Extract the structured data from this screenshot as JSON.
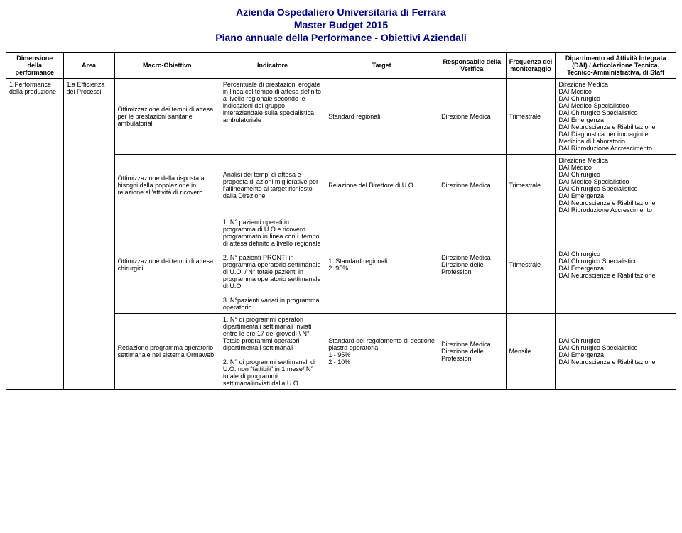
{
  "header": {
    "line1": "Azienda Ospedaliero Universitaria di Ferrara",
    "line2": "Master Budget 2015",
    "line3": "Piano annuale della Performance - Obiettivi Aziendali"
  },
  "columns": {
    "c0": "Dimensione della performance",
    "c1": "Area",
    "c2": "Macro-Obiettivo",
    "c3": "Indicatore",
    "c4": "Target",
    "c5": "Responsabile della Verifica",
    "c6": "Frequenza del monitoraggio",
    "c7": "Dipartimento ad Attività Integrata (DAI) / Articolazione Tecnica, Tecnico-Amministrativa, di Staff"
  },
  "rows": [
    {
      "dim": "1 Performance della produzione",
      "area": "1.a  Efficienza dei Processi",
      "macro": "Ottimizzazione dei tempi di attesa per le prestazioni sanitarie ambulatoriali",
      "indicatore": "Percentuale di prestazioni erogate in linea col tempo di attesa definito a livello regionale secondo le indicazioni del gruppo interaziendale sulla specialistica ambulatoriale",
      "target": "Standard regionali",
      "resp": "Direzione Medica",
      "freq": "Trimestrale",
      "dip": "Direzione Medica\nDAI Medico\nDAI Chirurgico\nDAI Medico Specialistico\nDAI Chirurgico Specialistico\nDAI Emergenza\nDAI Neuroscienze e Riabilitazione\nDAI Diagnostica per immagini e Medicina di Laboratorio\nDAI Riproduzione Accrescimento"
    },
    {
      "macro": "Ottimizzazione della risposta ai bisogni della popolazione in relazione all'attività di ricovero",
      "indicatore": "Analisi dei tempi di attesa e proposta di azioni migliorative per l'allineamento al target richiesto dalla Direzione",
      "target": "Relazione del Direttore di U.O.",
      "resp": "Direzione Medica",
      "freq": "Trimestrale",
      "dip": "Direzione Medica\nDAI Medico\nDAI Chirurgico\nDAI Medico Specialistico\nDAI Chirurgico Specialistico\nDAI Emergenza\nDAI Neuroscienze e Riabilitazione\nDAI Riproduzione Accrescimento"
    },
    {
      "macro": "Ottimizzazione dei tempi di attesa chirurgici",
      "indicatore": "1. N° pazienti operati in programma di U.O e ricovero programmato in linea con i ltempo di attesa definito a livello regionale\n\n2. N° pazienti PRONTI in programma operatorio settimanale di U.O. / N° totale pazienti in programma operatorio settimanale di U.O.\n\n3. N°pazienti variati in programma operatorio",
      "target": "1. Standard regionali\n2. 95%",
      "resp": "Direzione Medica\nDirezione delle Professioni",
      "freq": "Trimestrale",
      "dip": "DAI Chirurgico\nDAI Chirurgico Specialistico\nDAI Emergenza\nDAI Neuroscienze e Riabilitazione"
    },
    {
      "macro": "Redazione programma operatorio settimanale nel sistema Ormaweb",
      "indicatore": "1. N° di programmi operatori dipartimentali settimanali inviati entro  le ore 17 del giovedì \\ N° Totale programmi operatori dipartimentali settimanali\n\n2. N° di programmi settimanali di U.O. non \"fattibili\" in 1 mese/ N° totale di programmi settimanaliinviati dalla U.O.",
      "target": "Standard del regolamento di gestione piastra operatoria:\n1 - 95%\n2 - 10%",
      "resp": "Direzione Medica\nDirezione delle Professioni",
      "freq": "Mensile",
      "dip": "DAI Chirurgico\nDAI Chirurgico Specialistico\nDAI Emergenza\nDAI Neuroscienze e Riabilitazione"
    }
  ],
  "colors": {
    "title": "#000080",
    "text": "#000000",
    "border": "#000000",
    "background": "#ffffff"
  }
}
